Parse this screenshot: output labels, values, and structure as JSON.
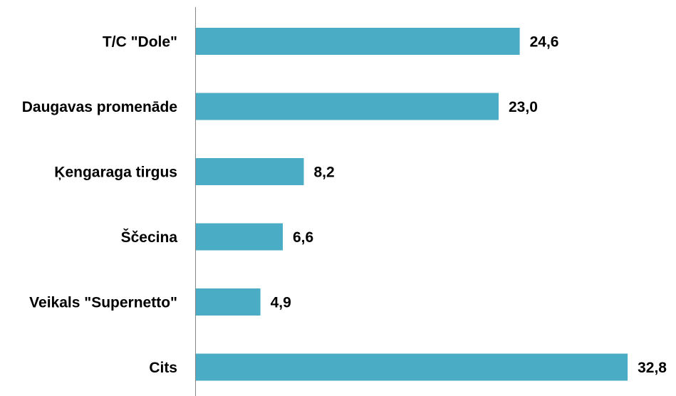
{
  "chart_data": {
    "type": "bar",
    "orientation": "horizontal",
    "categories": [
      "T/C \"Dole\"",
      "Daugavas promenāde",
      "Ķengaraga tirgus",
      "Ščecina",
      "Veikals \"Supernetto\"",
      "Cits"
    ],
    "values": [
      24.6,
      23.0,
      8.2,
      6.6,
      4.9,
      32.8
    ],
    "value_labels": [
      "24,6",
      "23,0",
      "8,2",
      "6,6",
      "4,9",
      "32,8"
    ],
    "title": "",
    "xlabel": "",
    "ylabel": "",
    "xlim": [
      0,
      33
    ],
    "grid": false,
    "legend": "none",
    "colors": {
      "bar": "#4BACC6",
      "axis": "#868686",
      "text": "#000000"
    }
  }
}
